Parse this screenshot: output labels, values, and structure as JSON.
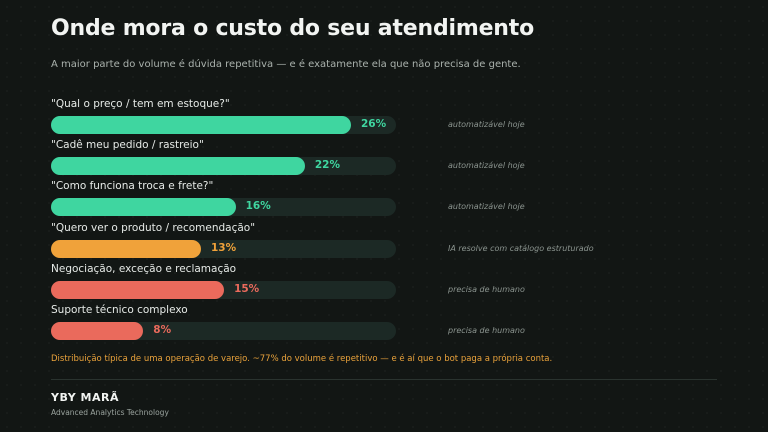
{
  "header": {
    "title": "Onde mora o custo do seu atendimento",
    "subtitle": "A maior parte do volume é dúvida repetitiva — e é exatamente ela que não precisa de gente."
  },
  "colors": {
    "automatable": "#3fd6a0",
    "ai_catalog": "#f0a23a",
    "human": "#ea6a5c"
  },
  "chart_data": {
    "type": "bar",
    "orientation": "horizontal",
    "xlim": [
      0,
      30
    ],
    "categories": [
      "\"Qual o preço / tem em estoque?\"",
      "\"Cadê meu pedido / rastreio\"",
      "\"Como funciona troca e frete?\"",
      "\"Quero ver o produto / recomendação\"",
      "Negociação, exceção e reclamação",
      "Suporte técnico complexo"
    ],
    "values": [
      26,
      22,
      16,
      13,
      15,
      8
    ],
    "value_labels": [
      "26%",
      "22%",
      "16%",
      "13%",
      "15%",
      "8%"
    ],
    "annotations": [
      "automatizável hoje",
      "automatizável hoje",
      "automatizável hoje",
      "IA resolve com catálogo estruturado",
      "precisa de humano",
      "precisa de humano"
    ],
    "bar_colors": [
      "#3fd6a0",
      "#3fd6a0",
      "#3fd6a0",
      "#f0a23a",
      "#ea6a5c",
      "#ea6a5c"
    ]
  },
  "footnote": "Distribuição típica de uma operação de varejo. ~77% do volume é repetitivo — e é aí que o bot paga a própria conta.",
  "footer": {
    "brand": "YBY MARÃ",
    "tagline": "Advanced Analytics Technology"
  }
}
